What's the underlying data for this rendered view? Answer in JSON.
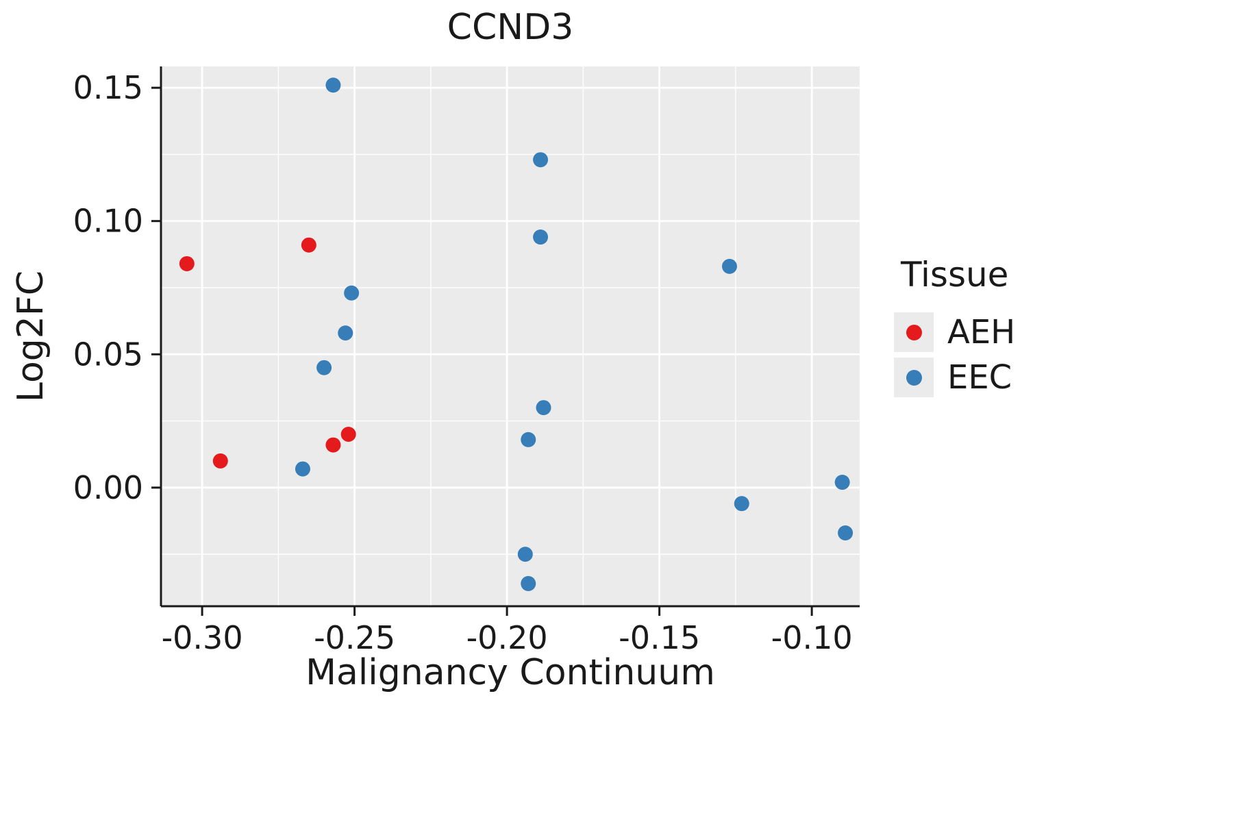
{
  "chart_data": {
    "type": "scatter",
    "title": "CCND3",
    "xlabel": "Malignancy Continuum",
    "ylabel": "Log2FC",
    "xlim": [
      -0.3135,
      -0.0843
    ],
    "ylim": [
      -0.0445,
      0.158
    ],
    "grid": true,
    "panel_bg": "#ebebeb",
    "grid_color": "#ffffff",
    "x_tick_values": [
      -0.3,
      -0.25,
      -0.2,
      -0.15,
      -0.1
    ],
    "x_tick_labels": [
      "-0.30",
      "-0.25",
      "-0.20",
      "-0.15",
      "-0.10"
    ],
    "x_minor_values": [
      -0.275,
      -0.225,
      -0.175,
      -0.125
    ],
    "y_tick_values": [
      0.0,
      0.05,
      0.1,
      0.15
    ],
    "y_tick_labels": [
      "0.00",
      "0.05",
      "0.10",
      "0.15"
    ],
    "y_minor_values": [
      -0.025,
      0.025,
      0.075,
      0.125
    ],
    "point_radius": 11,
    "series": [
      {
        "name": "AEH",
        "color": "#E41A1C",
        "points": [
          [
            -0.305,
            0.084
          ],
          [
            -0.294,
            0.01
          ],
          [
            -0.265,
            0.091
          ],
          [
            -0.257,
            0.016
          ],
          [
            -0.252,
            0.02
          ]
        ]
      },
      {
        "name": "EEC",
        "color": "#377EB8",
        "points": [
          [
            -0.267,
            0.007
          ],
          [
            -0.26,
            0.045
          ],
          [
            -0.257,
            0.151
          ],
          [
            -0.253,
            0.058
          ],
          [
            -0.251,
            0.073
          ],
          [
            -0.194,
            -0.025
          ],
          [
            -0.193,
            -0.036
          ],
          [
            -0.193,
            0.018
          ],
          [
            -0.189,
            0.123
          ],
          [
            -0.189,
            0.094
          ],
          [
            -0.188,
            0.03
          ],
          [
            -0.127,
            0.083
          ],
          [
            -0.123,
            -0.006
          ],
          [
            -0.09,
            0.002
          ],
          [
            -0.089,
            -0.017
          ]
        ]
      }
    ],
    "legend": {
      "title": "Tissue",
      "position": "right",
      "items": [
        {
          "label": "AEH",
          "color": "#E41A1C"
        },
        {
          "label": "EEC",
          "color": "#377EB8"
        }
      ]
    }
  }
}
